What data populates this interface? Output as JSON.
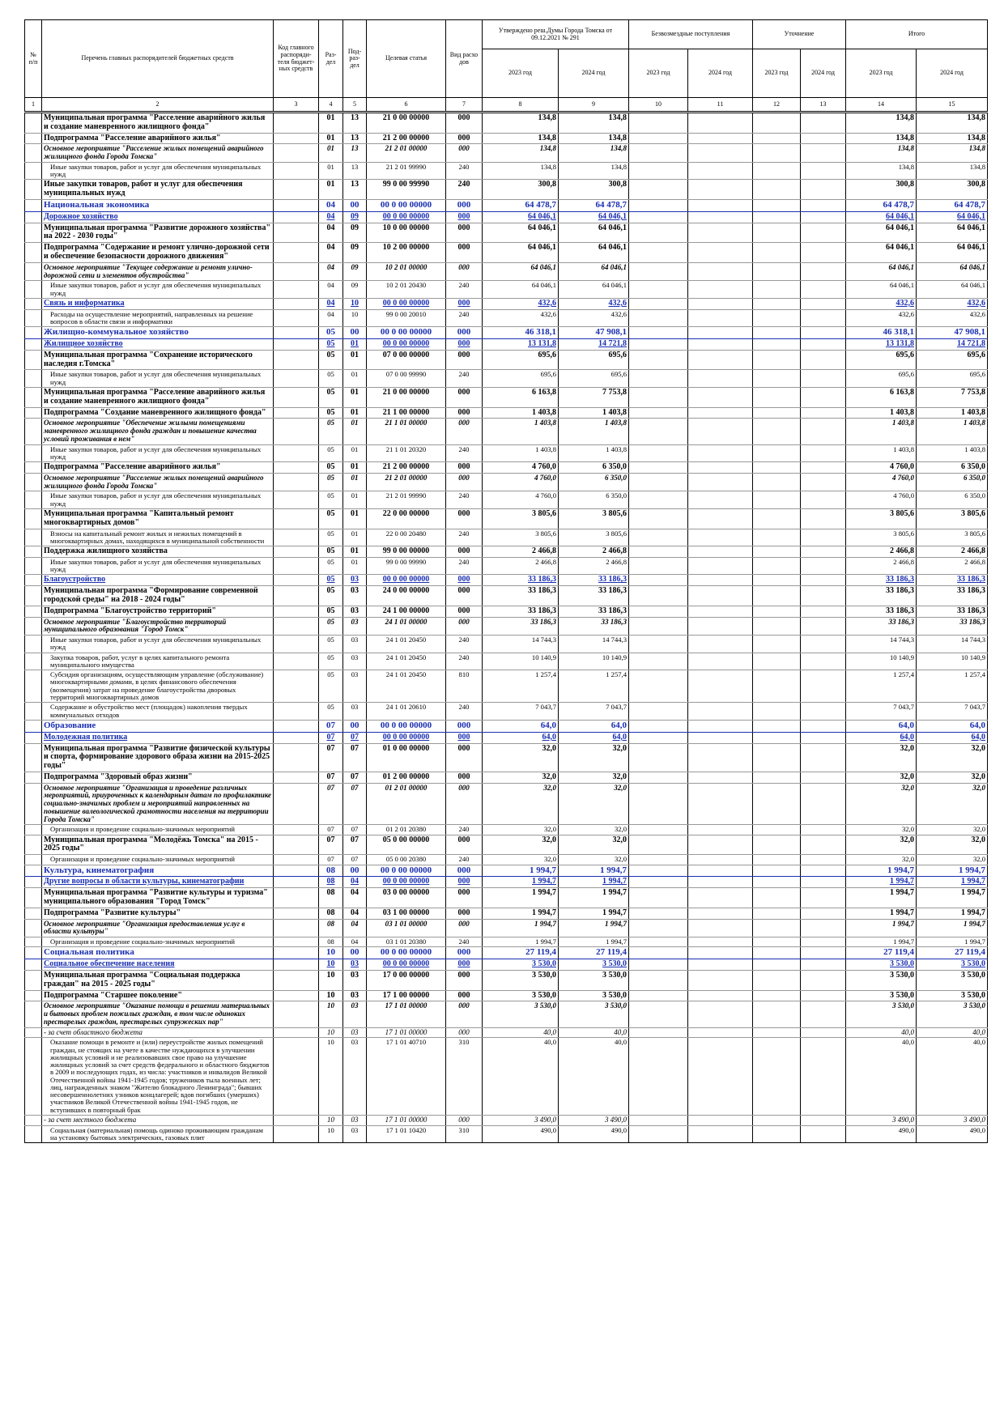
{
  "header": {
    "columns": [
      "№ п/п",
      "Перечень главных распорядителей бюджетных средств",
      "Код главного распоряди-теля бюджет-ных средств",
      "Раз-дел",
      "Под-раз-дел",
      "Целевая статья",
      "Вид расхо дов"
    ],
    "groups": [
      {
        "title": "Утверждено реш.Думы Города Томска от 09.12.2021 № 291",
        "years": [
          "2023 год",
          "2024 год"
        ]
      },
      {
        "title": "Безвозмездные поступления",
        "years": [
          "2023 год",
          "2024 год"
        ]
      },
      {
        "title": "Уточнение",
        "years": [
          "2023 год",
          "2024 год"
        ]
      },
      {
        "title": "Итого",
        "years": [
          "2023 год",
          "2024 год"
        ]
      }
    ],
    "numbers": [
      1,
      2,
      3,
      4,
      5,
      6,
      7,
      8,
      9,
      10,
      11,
      12,
      13,
      14,
      15
    ]
  },
  "rows": [
    {
      "style": "bold",
      "cells": [
        "Муниципальная программа \"Расселение аварийного жилья и создание маневренного жилищного фонда\"",
        "01",
        "13",
        "21 0 00 00000",
        "000",
        "134,8",
        "134,8",
        "134,8",
        "134,8"
      ]
    },
    {
      "style": "bold",
      "cells": [
        "Подпрограмма \"Расселение аварийного жилья\"",
        "01",
        "13",
        "21 2 00 00000",
        "000",
        "134,8",
        "134,8",
        "134,8",
        "134,8"
      ]
    },
    {
      "style": "italic",
      "cells": [
        "Основное мероприятие \"Расселение жилых помещений аварийного жилищного фонда Города Томска\"",
        "01",
        "13",
        "21 2 01 00000",
        "000",
        "134,8",
        "134,8",
        "134,8",
        "134,8"
      ]
    },
    {
      "style": "normal",
      "cells": [
        "Иные закупки товаров, работ и услуг для обеспечения муниципальных нужд",
        "01",
        "13",
        "21 2 01 99990",
        "240",
        "134,8",
        "134,8",
        "134,8",
        "134,8"
      ]
    },
    {
      "style": "bold",
      "cells": [
        "Иные закупки товаров, работ и услуг для обеспечения муниципальных нужд",
        "01",
        "13",
        "99 0 00 99990",
        "240",
        "300,8",
        "300,8",
        "300,8",
        "300,8"
      ]
    },
    {
      "style": "section",
      "cells": [
        "Национальная экономика",
        "04",
        "00",
        "00 0 00 00000",
        "000",
        "64 478,7",
        "64 478,7",
        "64 478,7",
        "64 478,7"
      ]
    },
    {
      "style": "subsection",
      "cells": [
        "Дорожное хозяйство",
        "04",
        "09",
        "00 0 00 00000",
        "000",
        "64 046,1",
        "64 046,1",
        "64 046,1",
        "64 046,1"
      ]
    },
    {
      "style": "bold",
      "cells": [
        "Муниципальная программа \"Развитие дорожного хозяйства\" на 2022 - 2030 годы\"",
        "04",
        "09",
        "10 0 00 00000",
        "000",
        "64 046,1",
        "64 046,1",
        "64 046,1",
        "64 046,1"
      ]
    },
    {
      "style": "bold",
      "cells": [
        "Подпрограмма \"Содержание и ремонт улично-дорожной сети и обеспечение безопасности дорожного движения\"",
        "04",
        "09",
        "10 2 00 00000",
        "000",
        "64 046,1",
        "64 046,1",
        "64 046,1",
        "64 046,1"
      ]
    },
    {
      "style": "italic",
      "cells": [
        "Основное мероприятие \"Текущее содержание и ремонт улично-дорожной сети и элементов обустройства\"",
        "04",
        "09",
        "10 2 01 00000",
        "000",
        "64 046,1",
        "64 046,1",
        "64 046,1",
        "64 046,1"
      ]
    },
    {
      "style": "normal",
      "cells": [
        "Иные закупки товаров, работ и услуг для обеспечения муниципальных нужд",
        "04",
        "09",
        "10 2 01 20430",
        "240",
        "64 046,1",
        "64 046,1",
        "64 046,1",
        "64 046,1"
      ]
    },
    {
      "style": "subsection",
      "cells": [
        "Связь и информатика",
        "04",
        "10",
        "00 0 00 00000",
        "000",
        "432,6",
        "432,6",
        "432,6",
        "432,6"
      ]
    },
    {
      "style": "normal",
      "cells": [
        "Расходы на осуществление мероприятий, направленных на решение вопросов в области связи и информатики",
        "04",
        "10",
        "99 0 00 20010",
        "240",
        "432,6",
        "432,6",
        "432,6",
        "432,6"
      ]
    },
    {
      "style": "section",
      "cells": [
        "Жилищно-коммунальное хозяйство",
        "05",
        "00",
        "00 0 00 00000",
        "000",
        "46 318,1",
        "47 908,1",
        "46 318,1",
        "47 908,1"
      ]
    },
    {
      "style": "subsection",
      "cells": [
        "Жилищное хозяйство",
        "05",
        "01",
        "00 0 00 00000",
        "000",
        "13 131,8",
        "14 721,8",
        "13 131,8",
        "14 721,8"
      ]
    },
    {
      "style": "bold",
      "cells": [
        "Муниципальная программа \"Сохранение исторического наследия г.Томска\"",
        "05",
        "01",
        "07 0 00 00000",
        "000",
        "695,6",
        "695,6",
        "695,6",
        "695,6"
      ]
    },
    {
      "style": "normal",
      "cells": [
        "Иные закупки товаров, работ и услуг для обеспечения муниципальных нужд",
        "05",
        "01",
        "07 0 00 99990",
        "240",
        "695,6",
        "695,6",
        "695,6",
        "695,6"
      ]
    },
    {
      "style": "bold",
      "cells": [
        "Муниципальная программа \"Расселение аварийного жилья и создание маневренного жилищного фонда\"",
        "05",
        "01",
        "21 0 00 00000",
        "000",
        "6 163,8",
        "7 753,8",
        "6 163,8",
        "7 753,8"
      ]
    },
    {
      "style": "bold",
      "cells": [
        "Подпрограмма \"Создание маневренного жилищного фонда\"",
        "05",
        "01",
        "21 1 00 00000",
        "000",
        "1 403,8",
        "1 403,8",
        "1 403,8",
        "1 403,8"
      ]
    },
    {
      "style": "italic",
      "cells": [
        "Основное мероприятие \"Обеспечение жилыми помещениями маневренного жилищного фонда граждан и повышение качества условий проживания в нем\"",
        "05",
        "01",
        "21 1 01 00000",
        "000",
        "1 403,8",
        "1 403,8",
        "1 403,8",
        "1 403,8"
      ]
    },
    {
      "style": "normal",
      "cells": [
        "Иные закупки товаров, работ и услуг для обеспечения муниципальных нужд",
        "05",
        "01",
        "21 1 01 20320",
        "240",
        "1 403,8",
        "1 403,8",
        "1 403,8",
        "1 403,8"
      ]
    },
    {
      "style": "bold",
      "cells": [
        "Подпрограмма \"Расселение аварийного жилья\"",
        "05",
        "01",
        "21 2 00 00000",
        "000",
        "4 760,0",
        "6 350,0",
        "4 760,0",
        "6 350,0"
      ]
    },
    {
      "style": "italic",
      "cells": [
        "Основное мероприятие \"Расселение жилых помещений аварийного жилищного фонда Города Томска\"",
        "05",
        "01",
        "21 2 01 00000",
        "000",
        "4 760,0",
        "6 350,0",
        "4 760,0",
        "6 350,0"
      ]
    },
    {
      "style": "normal",
      "cells": [
        "Иные закупки товаров, работ и услуг для обеспечения муниципальных нужд",
        "05",
        "01",
        "21 2 01 99990",
        "240",
        "4 760,0",
        "6 350,0",
        "4 760,0",
        "6 350,0"
      ]
    },
    {
      "style": "bold",
      "cells": [
        "Муниципальная программа \"Капитальный ремонт многоквартирных домов\"",
        "05",
        "01",
        "22 0 00 00000",
        "000",
        "3 805,6",
        "3 805,6",
        "3 805,6",
        "3 805,6"
      ]
    },
    {
      "style": "normal",
      "cells": [
        "Взносы на капитальный ремонт жилых и нежилых помещений в многоквартирных домах, находящихся в муниципальной собственности",
        "05",
        "01",
        "22 0 00 20480",
        "240",
        "3 805,6",
        "3 805,6",
        "3 805,6",
        "3 805,6"
      ]
    },
    {
      "style": "bold",
      "cells": [
        "Поддержка жилищного хозяйства",
        "05",
        "01",
        "99 0 00 00000",
        "000",
        "2 466,8",
        "2 466,8",
        "2 466,8",
        "2 466,8"
      ]
    },
    {
      "style": "normal",
      "cells": [
        "Иные закупки товаров, работ и услуг для обеспечения муниципальных нужд",
        "05",
        "01",
        "99 0 00 99990",
        "240",
        "2 466,8",
        "2 466,8",
        "2 466,8",
        "2 466,8"
      ]
    },
    {
      "style": "subsection",
      "cells": [
        "Благоустройство",
        "05",
        "03",
        "00 0 00 00000",
        "000",
        "33 186,3",
        "33 186,3",
        "33 186,3",
        "33 186,3"
      ]
    },
    {
      "style": "bold",
      "cells": [
        "Муниципальная программа \"Формирование современной городской среды\" на 2018 - 2024 годы\"",
        "05",
        "03",
        "24 0 00 00000",
        "000",
        "33 186,3",
        "33 186,3",
        "33 186,3",
        "33 186,3"
      ]
    },
    {
      "style": "bold",
      "cells": [
        "Подпрограмма \"Благоустройство территорий\"",
        "05",
        "03",
        "24 1 00 00000",
        "000",
        "33 186,3",
        "33 186,3",
        "33 186,3",
        "33 186,3"
      ]
    },
    {
      "style": "italic",
      "cells": [
        "Основное мероприятие \"Благоустройство территорий муниципального образования \"Город Томск\"",
        "05",
        "03",
        "24 1 01 00000",
        "000",
        "33 186,3",
        "33 186,3",
        "33 186,3",
        "33 186,3"
      ]
    },
    {
      "style": "normal",
      "cells": [
        "Иные закупки товаров, работ и услуг для обеспечения муниципальных нужд",
        "05",
        "03",
        "24 1 01 20450",
        "240",
        "14 744,3",
        "14 744,3",
        "14 744,3",
        "14 744,3"
      ]
    },
    {
      "style": "normal",
      "cells": [
        "Закупка товаров, работ, услуг в целях капитального ремонта муниципального имущества",
        "05",
        "03",
        "24 1 01 20450",
        "240",
        "10 140,9",
        "10 140,9",
        "10 140,9",
        "10 140,9"
      ]
    },
    {
      "style": "normal",
      "cells": [
        "Субсидия организациям, осуществляющим управление (обслуживание) многоквартирными домами, в целях финансового обеспечения (возмещения) затрат на проведение благоустройства дворовых территорий многоквартирных домов",
        "05",
        "03",
        "24 1 01 20450",
        "810",
        "1 257,4",
        "1 257,4",
        "1 257,4",
        "1 257,4"
      ]
    },
    {
      "style": "normal",
      "cells": [
        "Содержание и обустройство мест (площадок) накопления твердых коммунальных отходов",
        "05",
        "03",
        "24 1 01 20610",
        "240",
        "7 043,7",
        "7 043,7",
        "7 043,7",
        "7 043,7"
      ]
    },
    {
      "style": "section",
      "cells": [
        "Образование",
        "07",
        "00",
        "00 0 00 00000",
        "000",
        "64,0",
        "64,0",
        "64,0",
        "64,0"
      ]
    },
    {
      "style": "subsection",
      "cells": [
        "Молодежная политика",
        "07",
        "07",
        "00 0 00 00000",
        "000",
        "64,0",
        "64,0",
        "64,0",
        "64,0"
      ]
    },
    {
      "style": "bold",
      "cells": [
        "Муниципальная программа \"Развитие физической культуры и спорта, формирование здорового образа жизни на 2015-2025 годы\"",
        "07",
        "07",
        "01 0 00 00000",
        "000",
        "32,0",
        "32,0",
        "32,0",
        "32,0"
      ]
    },
    {
      "style": "bold",
      "cells": [
        "Подпрограмма \"Здоровый образ жизни\"",
        "07",
        "07",
        "01 2 00 00000",
        "000",
        "32,0",
        "32,0",
        "32,0",
        "32,0"
      ]
    },
    {
      "style": "italic",
      "cells": [
        "Основное мероприятие \"Организация и проведение различных мероприятий, приуроченных к календарным датам по профилактике социально-значимых проблем и мероприятий направленных на повышение валеологической грамотности населения на территории Города Томска\"",
        "07",
        "07",
        "01 2 01 00000",
        "000",
        "32,0",
        "32,0",
        "32,0",
        "32,0"
      ]
    },
    {
      "style": "normal",
      "cells": [
        "Организация и проведение социально-значимых мероприятий",
        "07",
        "07",
        "01 2 01 20380",
        "240",
        "32,0",
        "32,0",
        "32,0",
        "32,0"
      ]
    },
    {
      "style": "bold",
      "cells": [
        "Муниципальная программа \"Молодёжь Томска\" на 2015 - 2025 годы\"",
        "07",
        "07",
        "05 0 00 00000",
        "000",
        "32,0",
        "32,0",
        "32,0",
        "32,0"
      ]
    },
    {
      "style": "normal",
      "cells": [
        "Организация и проведение социально-значимых мероприятий",
        "07",
        "07",
        "05 0 00 20380",
        "240",
        "32,0",
        "32,0",
        "32,0",
        "32,0"
      ]
    },
    {
      "style": "section",
      "cells": [
        "Культура, кинематография",
        "08",
        "00",
        "00 0 00 00000",
        "000",
        "1 994,7",
        "1 994,7",
        "1 994,7",
        "1 994,7"
      ]
    },
    {
      "style": "subsection",
      "cells": [
        "Другие вопросы в области культуры, кинематографии",
        "08",
        "04",
        "00 0 00 00000",
        "000",
        "1 994,7",
        "1 994,7",
        "1 994,7",
        "1 994,7"
      ]
    },
    {
      "style": "bold",
      "cells": [
        "Муниципальная программа \"Развитие культуры и туризма\" муниципального образования \"Город Томск\"",
        "08",
        "04",
        "03 0 00 00000",
        "000",
        "1 994,7",
        "1 994,7",
        "1 994,7",
        "1 994,7"
      ]
    },
    {
      "style": "bold",
      "cells": [
        "Подпрограмма \"Развитие культуры\"",
        "08",
        "04",
        "03 1 00 00000",
        "000",
        "1 994,7",
        "1 994,7",
        "1 994,7",
        "1 994,7"
      ]
    },
    {
      "style": "italic",
      "cells": [
        "Основное мероприятие \"Организация предоставления услуг в области культуры\"",
        "08",
        "04",
        "03 1 01 00000",
        "000",
        "1 994,7",
        "1 994,7",
        "1 994,7",
        "1 994,7"
      ]
    },
    {
      "style": "normal",
      "cells": [
        "Организация и проведение социально-значимых мероприятий",
        "08",
        "04",
        "03 1 01 20380",
        "240",
        "1 994,7",
        "1 994,7",
        "1 994,7",
        "1 994,7"
      ]
    },
    {
      "style": "section",
      "cells": [
        "Социальная политика",
        "10",
        "00",
        "00 0 00 00000",
        "000",
        "27 119,4",
        "27 119,4",
        "27 119,4",
        "27 119,4"
      ]
    },
    {
      "style": "subsection",
      "cells": [
        "Социальное обеспечение населения",
        "10",
        "03",
        "00 0 00 00000",
        "000",
        "3 530,0",
        "3 530,0",
        "3 530,0",
        "3 530,0"
      ]
    },
    {
      "style": "bold",
      "cells": [
        "Муниципальная программа \"Социальная поддержка граждан\" на 2015 - 2025 годы\"",
        "10",
        "03",
        "17 0 00 00000",
        "000",
        "3 530,0",
        "3 530,0",
        "3 530,0",
        "3 530,0"
      ]
    },
    {
      "style": "bold",
      "cells": [
        "Подпрограмма \"Старшее поколение\"",
        "10",
        "03",
        "17 1 00 00000",
        "000",
        "3 530,0",
        "3 530,0",
        "3 530,0",
        "3 530,0"
      ]
    },
    {
      "style": "italic",
      "cells": [
        "Основное мероприятие \"Оказание помощи в решении материальных и бытовых проблем пожилых граждан, в том числе одиноких престарелых граждан, престарелых супружеских пар\"",
        "10",
        "03",
        "17 1 01 00000",
        "000",
        "3 530,0",
        "3 530,0",
        "3 530,0",
        "3 530,0"
      ]
    },
    {
      "style": "note",
      "cells": [
        "- за счет областного бюджета",
        "10",
        "03",
        "17 1 01 00000",
        "000",
        "40,0",
        "40,0",
        "40,0",
        "40,0"
      ]
    },
    {
      "style": "normal",
      "cells": [
        "Оказание помощи в ремонте и (или) переустройстве жилых помещений граждан, не стоящих на учете в качестве нуждающихся в улучшении жилищных условий и не реализовавших свое право на улучшение жилищных условий за счет средств федерального и областного бюджетов в 2009 и последующих годах, из числа: участников и инвалидов Великой Отечественной войны 1941-1945 годов; тружеников тыла военных лет; лиц, награжденных знаком \"Жителю блокадного Ленинграда\"; бывших несовершеннолетних узников концлагерей; вдов погибших (умерших) участников Великой Отечественной войны 1941-1945 годов, не вступивших в повторный брак",
        "10",
        "03",
        "17 1 01 40710",
        "310",
        "40,0",
        "40,0",
        "40,0",
        "40,0"
      ]
    },
    {
      "style": "note",
      "cells": [
        "- за счет местного бюджета",
        "10",
        "03",
        "17 1 01 00000",
        "000",
        "3 490,0",
        "3 490,0",
        "3 490,0",
        "3 490,0"
      ]
    },
    {
      "style": "normal",
      "cells": [
        "Социальная (материальная) помощь одиноко проживающим гражданам на установку бытовых электрических, газовых плит",
        "10",
        "03",
        "17 1 01 10420",
        "310",
        "490,0",
        "490,0",
        "490,0",
        "490,0"
      ]
    }
  ]
}
